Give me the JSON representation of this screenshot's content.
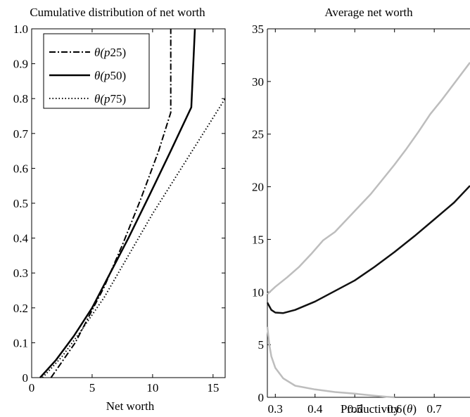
{
  "chart_data": [
    {
      "type": "line",
      "title": "Cumulative distribution of net worth",
      "xlabel": "Net worth",
      "ylabel": "",
      "xlim": [
        0,
        16
      ],
      "ylim": [
        0,
        1
      ],
      "xticks": [
        0,
        5,
        10,
        15
      ],
      "yticks": [
        0,
        0.1,
        0.2,
        0.3,
        0.4,
        0.5,
        0.6,
        0.7,
        0.8,
        0.9,
        1.0
      ],
      "ytick_labels": [
        "0",
        "0.1",
        "0.2",
        "0.3",
        "0.4",
        "0.5",
        "0.6",
        "0.7",
        "0.8",
        "0.9",
        "1.0"
      ],
      "legend_position": "top-left",
      "series": [
        {
          "name": "θ(p25)",
          "legend_base": "θ(",
          "legend_var": "p",
          "legend_rest": "25)",
          "style": "dashdot",
          "color": "#000000",
          "points": [
            [
              1.6,
              0
            ],
            [
              2.6,
              0.05
            ],
            [
              3.6,
              0.1
            ],
            [
              4.8,
              0.18
            ],
            [
              6,
              0.26
            ],
            [
              7.5,
              0.38
            ],
            [
              9,
              0.51
            ],
            [
              10.5,
              0.65
            ],
            [
              11.5,
              0.76
            ],
            [
              11.5,
              1.0
            ]
          ]
        },
        {
          "name": "θ(p50)",
          "legend_base": "θ(",
          "legend_var": "p",
          "legend_rest": "50)",
          "style": "solid",
          "color": "#000000",
          "points": [
            [
              0.7,
              0
            ],
            [
              2,
              0.05
            ],
            [
              3.5,
              0.12
            ],
            [
              5,
              0.2
            ],
            [
              6.5,
              0.3
            ],
            [
              8,
              0.4
            ],
            [
              9.7,
              0.52
            ],
            [
              11.5,
              0.65
            ],
            [
              13.2,
              0.775
            ],
            [
              13.5,
              1.0
            ]
          ]
        },
        {
          "name": "θ(p75)",
          "legend_base": "θ(",
          "legend_var": "p",
          "legend_rest": "75)",
          "style": "dotted",
          "color": "#000000",
          "points": [
            [
              0.9,
              0
            ],
            [
              2.5,
              0.06
            ],
            [
              4,
              0.13
            ],
            [
              6,
              0.23
            ],
            [
              8,
              0.35
            ],
            [
              10,
              0.47
            ],
            [
              12,
              0.58
            ],
            [
              14,
              0.69
            ],
            [
              16,
              0.8
            ]
          ]
        }
      ]
    },
    {
      "type": "line",
      "title": "Average net worth",
      "xlabel_prefix": "Productivity (",
      "xlabel_var": "θ",
      "xlabel_suffix": ")",
      "ylabel": "",
      "xlim": [
        0.28,
        0.79
      ],
      "ylim": [
        0,
        35
      ],
      "xticks": [
        0.3,
        0.4,
        0.5,
        0.6,
        0.7
      ],
      "xtick_labels": [
        "0.3",
        "0.4",
        "0.5",
        "0.6",
        "0.7"
      ],
      "yticks": [
        0,
        5,
        10,
        15,
        20,
        25,
        30,
        35
      ],
      "series": [
        {
          "style": "solid",
          "color": "#bdbdbd",
          "points": [
            [
              0.28,
              9.8
            ],
            [
              0.3,
              10.5
            ],
            [
              0.33,
              11.4
            ],
            [
              0.36,
              12.4
            ],
            [
              0.39,
              13.6
            ],
            [
              0.42,
              14.9
            ],
            [
              0.45,
              15.7
            ],
            [
              0.48,
              16.9
            ],
            [
              0.51,
              18.1
            ],
            [
              0.54,
              19.3
            ],
            [
              0.57,
              20.7
            ],
            [
              0.6,
              22.1
            ],
            [
              0.63,
              23.6
            ],
            [
              0.66,
              25.2
            ],
            [
              0.69,
              26.9
            ],
            [
              0.72,
              28.3
            ],
            [
              0.75,
              29.8
            ],
            [
              0.79,
              31.8
            ]
          ]
        },
        {
          "style": "solid",
          "color": "#111111",
          "points": [
            [
              0.28,
              9.0
            ],
            [
              0.29,
              8.3
            ],
            [
              0.3,
              8.05
            ],
            [
              0.32,
              8.0
            ],
            [
              0.35,
              8.3
            ],
            [
              0.4,
              9.1
            ],
            [
              0.45,
              10.1
            ],
            [
              0.5,
              11.1
            ],
            [
              0.55,
              12.4
            ],
            [
              0.6,
              13.8
            ],
            [
              0.65,
              15.3
            ],
            [
              0.7,
              16.9
            ],
            [
              0.75,
              18.5
            ],
            [
              0.79,
              20.1
            ]
          ]
        },
        {
          "style": "solid",
          "color": "#bdbdbd",
          "points": [
            [
              0.28,
              6.7
            ],
            [
              0.285,
              5.0
            ],
            [
              0.29,
              3.9
            ],
            [
              0.3,
              2.8
            ],
            [
              0.32,
              1.8
            ],
            [
              0.35,
              1.1
            ],
            [
              0.4,
              0.75
            ],
            [
              0.45,
              0.5
            ],
            [
              0.5,
              0.35
            ],
            [
              0.55,
              0.15
            ],
            [
              0.58,
              0.05
            ],
            [
              0.6,
              0.0
            ]
          ]
        }
      ]
    }
  ]
}
